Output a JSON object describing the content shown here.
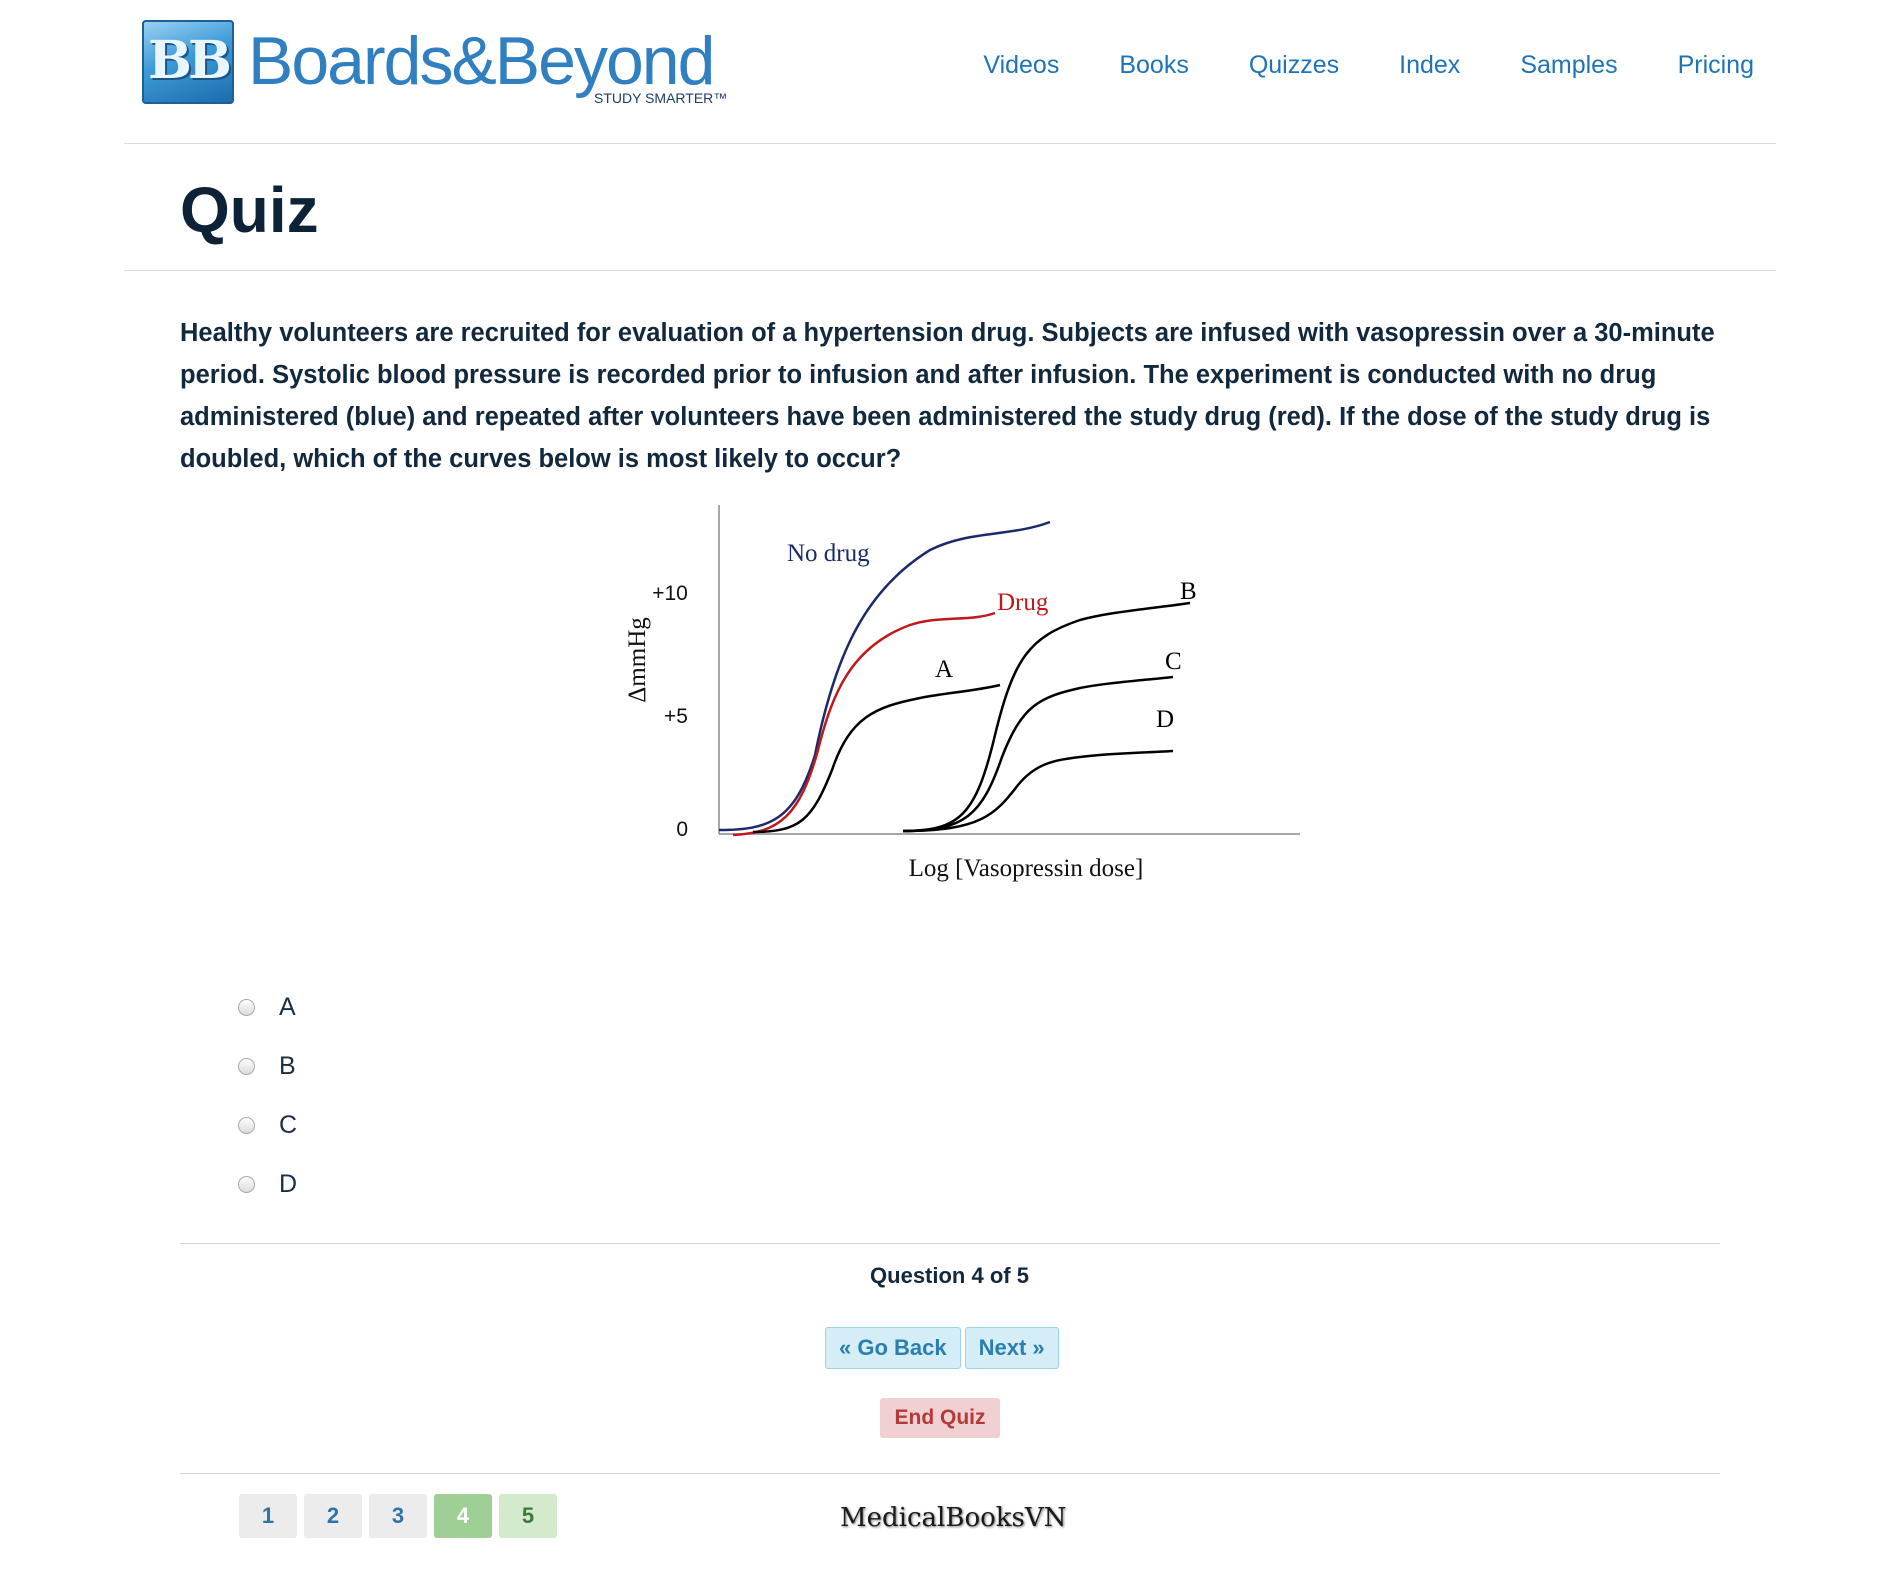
{
  "header": {
    "logo_badge": "BB",
    "logo_text": "Boards&Beyond",
    "logo_tagline": "STUDY SMARTER™",
    "nav": [
      "Videos",
      "Books",
      "Quizzes",
      "Index",
      "Samples",
      "Pricing"
    ]
  },
  "page_title": "Quiz",
  "question": {
    "text": "Healthy volunteers are recruited for evaluation of a hypertension drug. Subjects are infused with vasopressin over a 30-minute period. Systolic blood pressure is recorded prior to infusion and after infusion. The experiment is conducted with no drug administered (blue) and repeated after volunteers have been administered the study drug (red). If the dose of the study drug is doubled, which of the curves below is most likely to occur?"
  },
  "figure": {
    "y_label": "ΔmmHg",
    "x_label": "Log [Vasopressin dose]",
    "y_ticks": [
      "+10",
      "+5",
      "0"
    ],
    "curve_labels": {
      "no_drug": "No drug",
      "drug": "Drug",
      "a": "A",
      "b": "B",
      "c": "C",
      "d": "D"
    },
    "colors": {
      "no_drug": "#1a2a6c",
      "drug": "#c0181c",
      "options": "#000000"
    }
  },
  "options": [
    "A",
    "B",
    "C",
    "D"
  ],
  "counter": "Question 4 of 5",
  "buttons": {
    "back": "« Go Back",
    "next": "Next »",
    "end": "End Quiz"
  },
  "pagination": [
    "1",
    "2",
    "3",
    "4",
    "5"
  ],
  "current_page": "4",
  "watermark": "MedicalBooksVN"
}
